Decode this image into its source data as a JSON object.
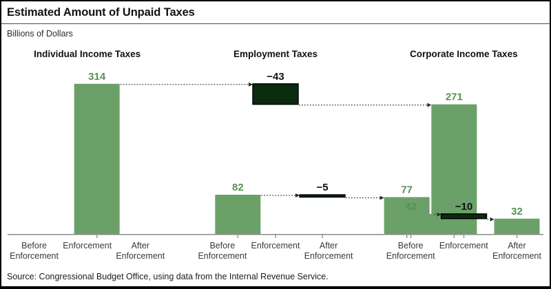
{
  "header": {
    "title": "Estimated Amount of Unpaid Taxes",
    "subtitle": "Billions of Dollars"
  },
  "footer": {
    "source": "Source: Congressional Budget Office, using data from the Internal Revenue Service."
  },
  "colors": {
    "bar_green": "#6ba168",
    "value_label_green": "#569150",
    "change_bar_fill": "#0a2b0e",
    "change_bar_stroke": "#000000",
    "change_label": "#111111",
    "axis_gray": "#8a8a8a",
    "connector": "#2a2a2a",
    "axis_label_text": "#3a3a3a"
  },
  "chart_data": {
    "type": "bar",
    "subtype": "waterfall-triptych",
    "title": "Estimated Amount of Unpaid Taxes",
    "ylabel": "Billions of Dollars",
    "ylim": [
      0,
      314
    ],
    "grid": false,
    "legend": "none",
    "categories": [
      "Before Enforcement",
      "Enforcement",
      "After Enforcement"
    ],
    "groups": [
      {
        "name": "Individual Income Taxes",
        "before": 314,
        "change": -43,
        "after": 271,
        "labels": [
          "314",
          "−43",
          "271"
        ]
      },
      {
        "name": "Employment Taxes",
        "before": 82,
        "change": -5,
        "after": 77,
        "labels": [
          "82",
          "−5",
          "77"
        ]
      },
      {
        "name": "Corporate Income Taxes",
        "before": 42,
        "change": -10,
        "after": 32,
        "labels": [
          "42",
          "−10",
          "32"
        ]
      }
    ],
    "source": "Source: Congressional Budget Office, using data from the Internal Revenue Service."
  }
}
